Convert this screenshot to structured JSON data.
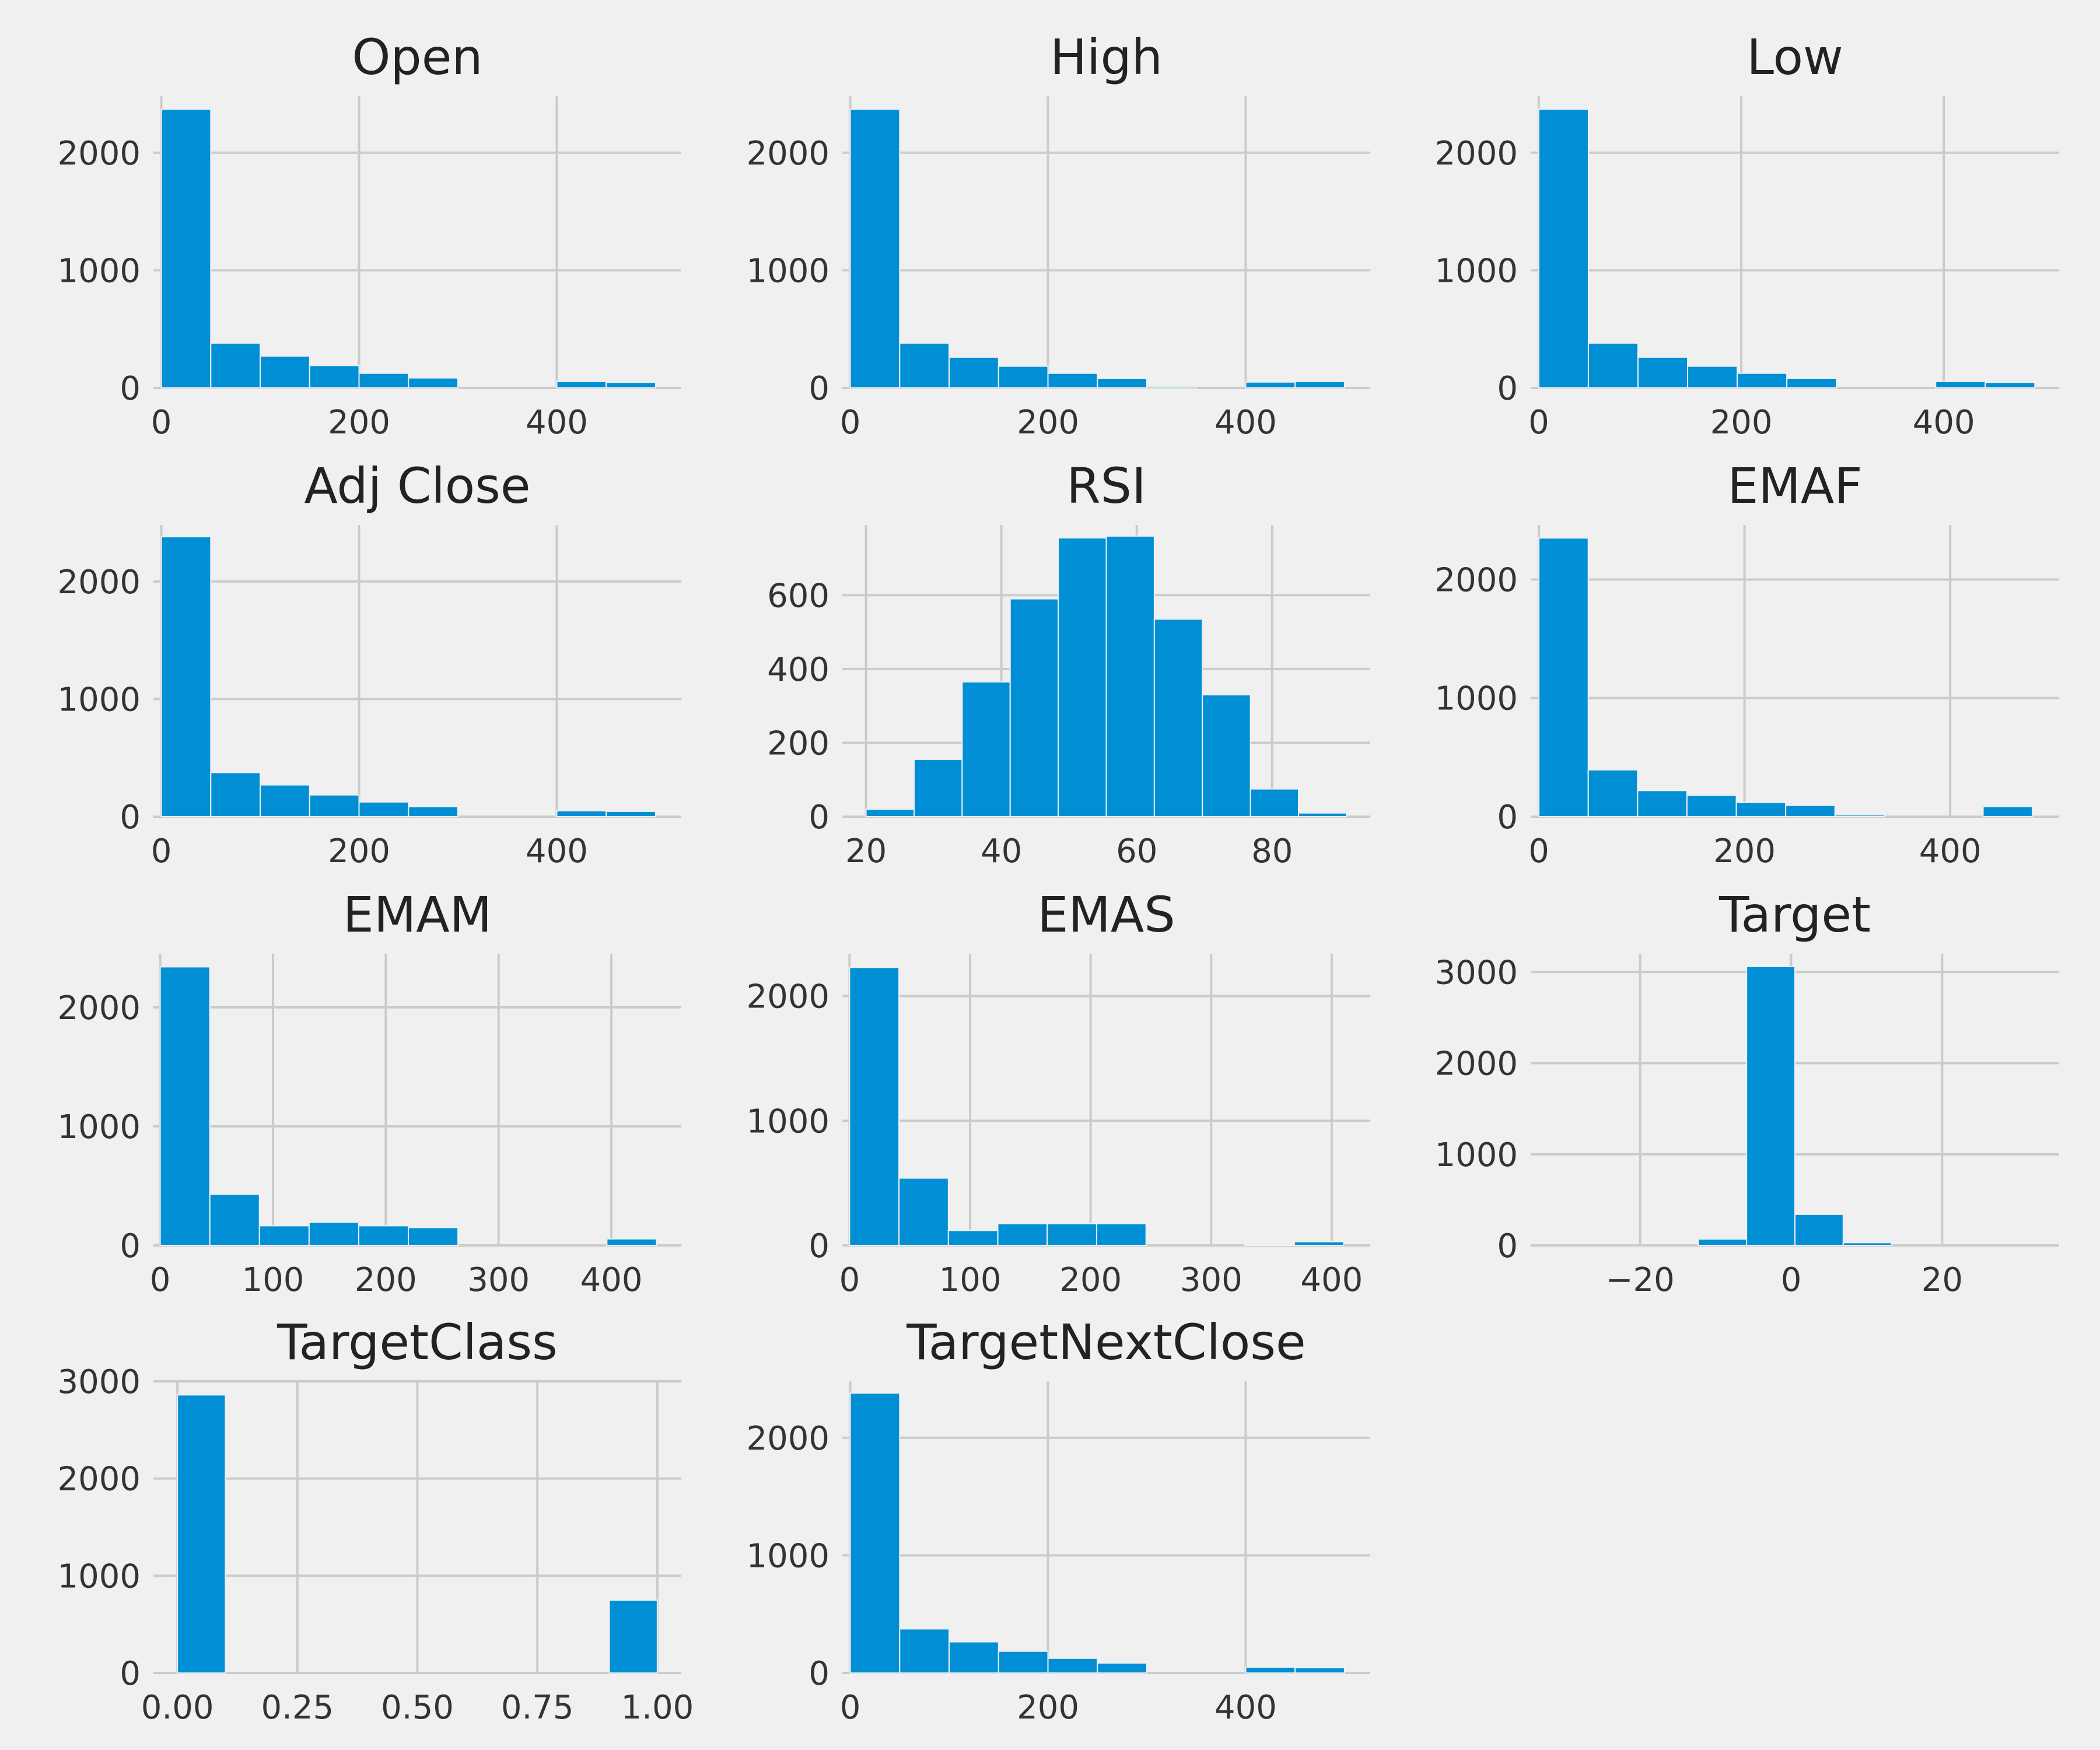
{
  "chart_data": [
    {
      "type": "bar",
      "title": "Open",
      "bin_edges": [
        0,
        50,
        100,
        150,
        200,
        250,
        300,
        350,
        400,
        450,
        500
      ],
      "values": [
        2370,
        380,
        270,
        190,
        125,
        85,
        0,
        0,
        55,
        45
      ],
      "xlim": [
        -8,
        526
      ],
      "ylim": [
        0,
        2480
      ],
      "xticks": [
        {
          "value": 0,
          "label": "0"
        },
        {
          "value": 200,
          "label": "200"
        },
        {
          "value": 400,
          "label": "400"
        }
      ],
      "yticks": [
        {
          "value": 0,
          "label": "0"
        },
        {
          "value": 1000,
          "label": "1000"
        },
        {
          "value": 2000,
          "label": "2000"
        }
      ]
    },
    {
      "type": "bar",
      "title": "High",
      "bin_edges": [
        0,
        50,
        100,
        150,
        200,
        250,
        300,
        350,
        400,
        450,
        500
      ],
      "values": [
        2370,
        380,
        260,
        185,
        125,
        80,
        15,
        0,
        50,
        55
      ],
      "xlim": [
        -8,
        526
      ],
      "ylim": [
        0,
        2480
      ],
      "xticks": [
        {
          "value": 0,
          "label": "0"
        },
        {
          "value": 200,
          "label": "200"
        },
        {
          "value": 400,
          "label": "400"
        }
      ],
      "yticks": [
        {
          "value": 0,
          "label": "0"
        },
        {
          "value": 1000,
          "label": "1000"
        },
        {
          "value": 2000,
          "label": "2000"
        }
      ]
    },
    {
      "type": "bar",
      "title": "Low",
      "bin_edges": [
        0,
        49,
        98,
        147,
        196,
        245,
        294,
        343,
        392,
        441,
        490
      ],
      "values": [
        2370,
        380,
        260,
        185,
        125,
        80,
        0,
        0,
        55,
        45
      ],
      "xlim": [
        -8,
        514
      ],
      "ylim": [
        0,
        2480
      ],
      "xticks": [
        {
          "value": 0,
          "label": "0"
        },
        {
          "value": 200,
          "label": "200"
        },
        {
          "value": 400,
          "label": "400"
        }
      ],
      "yticks": [
        {
          "value": 0,
          "label": "0"
        },
        {
          "value": 1000,
          "label": "1000"
        },
        {
          "value": 2000,
          "label": "2000"
        }
      ]
    },
    {
      "type": "bar",
      "title": "Adj Close",
      "bin_edges": [
        0,
        50,
        100,
        150,
        200,
        250,
        300,
        350,
        400,
        450,
        500
      ],
      "values": [
        2380,
        375,
        270,
        185,
        125,
        85,
        0,
        0,
        50,
        45
      ],
      "xlim": [
        -8,
        526
      ],
      "ylim": [
        0,
        2480
      ],
      "xticks": [
        {
          "value": 0,
          "label": "0"
        },
        {
          "value": 200,
          "label": "200"
        },
        {
          "value": 400,
          "label": "400"
        }
      ],
      "yticks": [
        {
          "value": 0,
          "label": "0"
        },
        {
          "value": 1000,
          "label": "1000"
        },
        {
          "value": 2000,
          "label": "2000"
        }
      ]
    },
    {
      "type": "bar",
      "title": "RSI",
      "bin_edges": [
        20,
        27.1,
        34.2,
        41.3,
        48.4,
        55.5,
        62.6,
        69.7,
        76.8,
        83.9,
        91
      ],
      "values": [
        20,
        155,
        365,
        590,
        755,
        760,
        535,
        330,
        75,
        10
      ],
      "xlim": [
        16.5,
        94.5
      ],
      "ylim": [
        0,
        790
      ],
      "xticks": [
        {
          "value": 20,
          "label": "20"
        },
        {
          "value": 40,
          "label": "40"
        },
        {
          "value": 60,
          "label": "60"
        },
        {
          "value": 80,
          "label": "80"
        }
      ],
      "yticks": [
        {
          "value": 0,
          "label": "0"
        },
        {
          "value": 200,
          "label": "200"
        },
        {
          "value": 400,
          "label": "400"
        },
        {
          "value": 600,
          "label": "600"
        }
      ]
    },
    {
      "type": "bar",
      "title": "EMAF",
      "bin_edges": [
        0,
        48,
        96,
        144,
        192,
        240,
        288,
        336,
        384,
        432,
        480
      ],
      "values": [
        2350,
        395,
        220,
        180,
        120,
        95,
        15,
        0,
        0,
        85
      ],
      "xlim": [
        -8,
        506
      ],
      "ylim": [
        0,
        2460
      ],
      "xticks": [
        {
          "value": 0,
          "label": "0"
        },
        {
          "value": 200,
          "label": "200"
        },
        {
          "value": 400,
          "label": "400"
        }
      ],
      "yticks": [
        {
          "value": 0,
          "label": "0"
        },
        {
          "value": 1000,
          "label": "1000"
        },
        {
          "value": 2000,
          "label": "2000"
        }
      ]
    },
    {
      "type": "bar",
      "title": "EMAM",
      "bin_edges": [
        0,
        44,
        88,
        132,
        176,
        220,
        264,
        308,
        352,
        396,
        440
      ],
      "values": [
        2340,
        430,
        165,
        195,
        165,
        150,
        0,
        0,
        0,
        55
      ],
      "xlim": [
        -6,
        462
      ],
      "ylim": [
        0,
        2450
      ],
      "xticks": [
        {
          "value": 0,
          "label": "0"
        },
        {
          "value": 100,
          "label": "100"
        },
        {
          "value": 200,
          "label": "200"
        },
        {
          "value": 300,
          "label": "300"
        },
        {
          "value": 400,
          "label": "400"
        }
      ],
      "yticks": [
        {
          "value": 0,
          "label": "0"
        },
        {
          "value": 1000,
          "label": "1000"
        },
        {
          "value": 2000,
          "label": "2000"
        }
      ]
    },
    {
      "type": "bar",
      "title": "EMAS",
      "bin_edges": [
        0,
        41,
        82,
        123,
        164,
        205,
        246,
        287,
        328,
        369,
        410
      ],
      "values": [
        2230,
        540,
        120,
        175,
        175,
        175,
        0,
        0,
        5,
        30
      ],
      "xlim": [
        -6,
        432
      ],
      "ylim": [
        0,
        2340
      ],
      "xticks": [
        {
          "value": 0,
          "label": "0"
        },
        {
          "value": 100,
          "label": "100"
        },
        {
          "value": 200,
          "label": "200"
        },
        {
          "value": 300,
          "label": "300"
        },
        {
          "value": 400,
          "label": "400"
        }
      ],
      "yticks": [
        {
          "value": 0,
          "label": "0"
        },
        {
          "value": 1000,
          "label": "1000"
        },
        {
          "value": 2000,
          "label": "2000"
        }
      ]
    },
    {
      "type": "bar",
      "title": "Target",
      "bin_edges": [
        -31.5,
        -25.1,
        -18.7,
        -12.3,
        -5.9,
        0.5,
        6.9,
        13.3,
        19.7,
        26.1,
        32.5
      ],
      "values": [
        0,
        0,
        0,
        70,
        3060,
        340,
        30,
        0,
        0,
        0
      ],
      "xlim": [
        -34.5,
        35.5
      ],
      "ylim": [
        0,
        3200
      ],
      "xticks": [
        {
          "value": -20,
          "label": "−20"
        },
        {
          "value": 0,
          "label": "0"
        },
        {
          "value": 20,
          "label": "20"
        }
      ],
      "yticks": [
        {
          "value": 0,
          "label": "0"
        },
        {
          "value": 1000,
          "label": "1000"
        },
        {
          "value": 2000,
          "label": "2000"
        },
        {
          "value": 3000,
          "label": "3000"
        }
      ]
    },
    {
      "type": "bar",
      "title": "TargetClass",
      "bin_edges": [
        0,
        0.1,
        0.2,
        0.3,
        0.4,
        0.5,
        0.6,
        0.7,
        0.8,
        0.9,
        1
      ],
      "values": [
        2860,
        0,
        0,
        0,
        0,
        0,
        0,
        0,
        0,
        750
      ],
      "xlim": [
        -0.05,
        1.05
      ],
      "ylim": [
        0,
        3000
      ],
      "xticks": [
        {
          "value": 0,
          "label": "0.00"
        },
        {
          "value": 0.25,
          "label": "0.25"
        },
        {
          "value": 0.5,
          "label": "0.50"
        },
        {
          "value": 0.75,
          "label": "0.75"
        },
        {
          "value": 1,
          "label": "1.00"
        }
      ],
      "yticks": [
        {
          "value": 0,
          "label": "0"
        },
        {
          "value": 1000,
          "label": "1000"
        },
        {
          "value": 2000,
          "label": "2000"
        },
        {
          "value": 3000,
          "label": "3000"
        }
      ]
    },
    {
      "type": "bar",
      "title": "TargetNextClose",
      "bin_edges": [
        0,
        50,
        100,
        150,
        200,
        250,
        300,
        350,
        400,
        450,
        500
      ],
      "values": [
        2380,
        375,
        265,
        185,
        125,
        85,
        0,
        0,
        50,
        45
      ],
      "xlim": [
        -8,
        526
      ],
      "ylim": [
        0,
        2480
      ],
      "xticks": [
        {
          "value": 0,
          "label": "0"
        },
        {
          "value": 200,
          "label": "200"
        },
        {
          "value": 400,
          "label": "400"
        }
      ],
      "yticks": [
        {
          "value": 0,
          "label": "0"
        },
        {
          "value": 1000,
          "label": "1000"
        },
        {
          "value": 2000,
          "label": "2000"
        }
      ]
    }
  ]
}
